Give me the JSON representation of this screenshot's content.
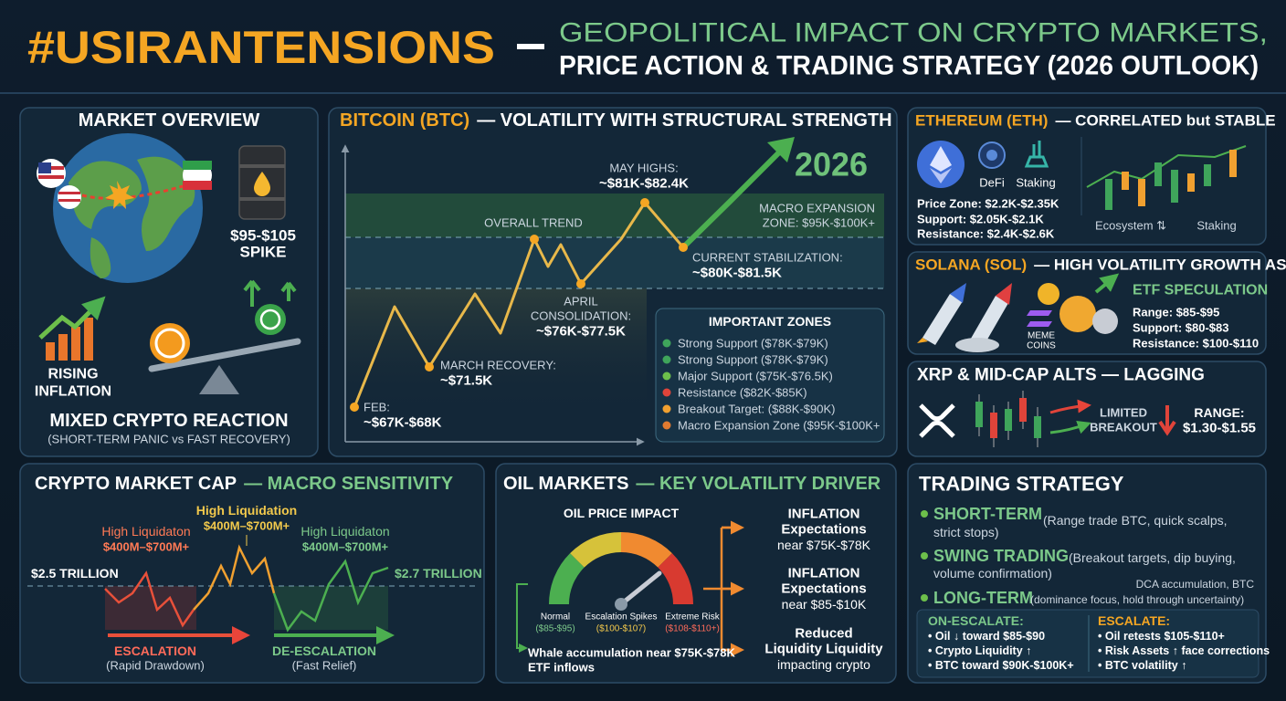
{
  "header": {
    "title": "#USIRANTENSIONS",
    "subtitle": [
      "GEOPOLITICAL IMPACT ON CRYPTO MARKETS,",
      "PRICE ACTION & TRADING STRATEGY (2026 OUTLOOK)"
    ]
  },
  "market_overview": {
    "title": "MARKET OVERVIEW",
    "oil": [
      "$95-$105",
      "SPIKE"
    ],
    "inflation": [
      "RISING",
      "INFLATION"
    ],
    "reaction": "MIXED CRYPTO REACTION",
    "reaction_note": "(SHORT-TERM PANIC vs FAST RECOVERY)"
  },
  "bitcoin": {
    "title": [
      "BITCOIN (BTC)",
      "— VOLATILITY WITH STRUCTURAL STRENGTH"
    ],
    "year": "2026",
    "trend": "OVERALL TREND",
    "macro_zone": [
      "MACRO EXPANSION",
      "ZONE: $95K-$100K+"
    ],
    "points": [
      {
        "label": [
          "FEB:"
        ],
        "value": "~$67K-$68K"
      },
      {
        "label": [
          "MARCH RECOVERY:"
        ],
        "value": "~$71.5K"
      },
      {
        "label": [
          "APRIL",
          "CONSOLIDATION:"
        ],
        "value": "~$76K-$77.5K"
      },
      {
        "label": [
          "MAY HIGHS:"
        ],
        "value": "~$81K-$82.4K"
      },
      {
        "label": [
          "CURRENT STABILIZATION:"
        ],
        "value": "~$80K-$81.5K"
      }
    ],
    "zones": {
      "title": "IMPORTANT ZONES",
      "items": [
        {
          "text": "Strong Support ($78K-$79K)",
          "color": "#3fa55b"
        },
        {
          "text": "Strong Support ($78K-$79K)",
          "color": "#3fa55b"
        },
        {
          "text": "Major Support ($75K-$76.5K)",
          "color": "#6dbf4b"
        },
        {
          "text": "Resistance ($82K-$85K)",
          "color": "#e0443a"
        },
        {
          "text": "Breakout Target: ($88K-$90K)",
          "color": "#f0a030"
        },
        {
          "text": "Macro Expansion Zone ($95K-$100K+",
          "color": "#e07a30"
        }
      ]
    }
  },
  "ethereum": {
    "title": [
      "ETHEREUM (ETH)",
      "— CORRELATED but STABLE"
    ],
    "icons": [
      "DeFi",
      "Staking"
    ],
    "levels": [
      "Price Zone: $2.2K-$2.35K",
      "Support: $2.05K-$2.1K",
      "Resistance: $2.4K-$2.6K"
    ],
    "chart_labels": [
      "Ecosystem ⇅",
      "Staking"
    ]
  },
  "solana": {
    "title": [
      "SOLANA (SOL)",
      "— HIGH VOLATILITY GROWTH ASSET"
    ],
    "meme": [
      "MEME",
      "COINS"
    ],
    "etf": "ETF SPECULATION",
    "levels": [
      "Range: $85-$95",
      "Support: $80-$83",
      "Resistance: $100-$110"
    ]
  },
  "xrp": {
    "title": "XRP & MID-CAP ALTS — LAGGING",
    "breakout": [
      "LIMITED",
      "BREAKOUT"
    ],
    "range": [
      "RANGE:",
      "$1.30-$1.55"
    ]
  },
  "market_cap": {
    "title": [
      "CRYPTO MARKET CAP",
      "— MACRO SENSITIVITY"
    ],
    "levels": [
      "$2.5 TRILLION",
      "$2.7 TRILLION"
    ],
    "liquidations": [
      {
        "label": "High Liquidaton",
        "value": "$400M–$700M+"
      },
      {
        "label": "High Liquidation",
        "value": "$400M–$700M+"
      },
      {
        "label": "High Liquidaton",
        "value": "$400M–$700M+"
      }
    ],
    "phases": [
      {
        "label": "ESCALATION",
        "note": "(Rapid Drawdown)"
      },
      {
        "label": "DE-ESCALATION",
        "note": "(Fast Relief)"
      }
    ]
  },
  "oil": {
    "title": [
      "OIL MARKETS",
      "— KEY VOLATILITY DRIVER"
    ],
    "gauge_title": "OIL PRICE IMPACT",
    "gauge": [
      {
        "label": "Normal",
        "range": "($85-$95)"
      },
      {
        "label": "Escalation Spikes",
        "range": "($100-$107)"
      },
      {
        "label": "Extreme Risk",
        "range": "($108-$110+)"
      }
    ],
    "inputs": [
      "Whale accumulation near $75K-$78K",
      "ETF inflows"
    ],
    "effects": [
      [
        "INFLATION",
        "Expectations",
        "near $75K-$78K"
      ],
      [
        "INFLATION",
        "Expectations",
        "near $85-$10K"
      ],
      [
        "Reduced",
        "Liquidity Liquidity",
        "impacting crypto"
      ]
    ]
  },
  "strategy": {
    "title": "TRADING STRATEGY",
    "items": [
      {
        "label": "SHORT-TERM",
        "detail": [
          "(Range trade BTC, quick scalps,",
          "strict stops)"
        ]
      },
      {
        "label": "SWING TRADING",
        "detail": [
          "(Breakout targets, dip buying,",
          "volume confirmation)"
        ]
      },
      {
        "label": "LONG-TERM",
        "detail": [
          "DCA accumulation, BTC",
          "(dominance focus, hold through uncertainty)"
        ]
      }
    ],
    "scenarios": [
      {
        "title": "ON-ESCALATE:",
        "items": [
          "• Oil ↓ toward $85-$90",
          "• Crypto Liquidity ↑",
          "• BTC toward $90K-$100K+"
        ]
      },
      {
        "title": "ESCALATE:",
        "items": [
          "• Oil retests $105-$110+",
          "• Risk Assets ↑ face corrections",
          "• BTC volatility ↑"
        ]
      }
    ]
  }
}
